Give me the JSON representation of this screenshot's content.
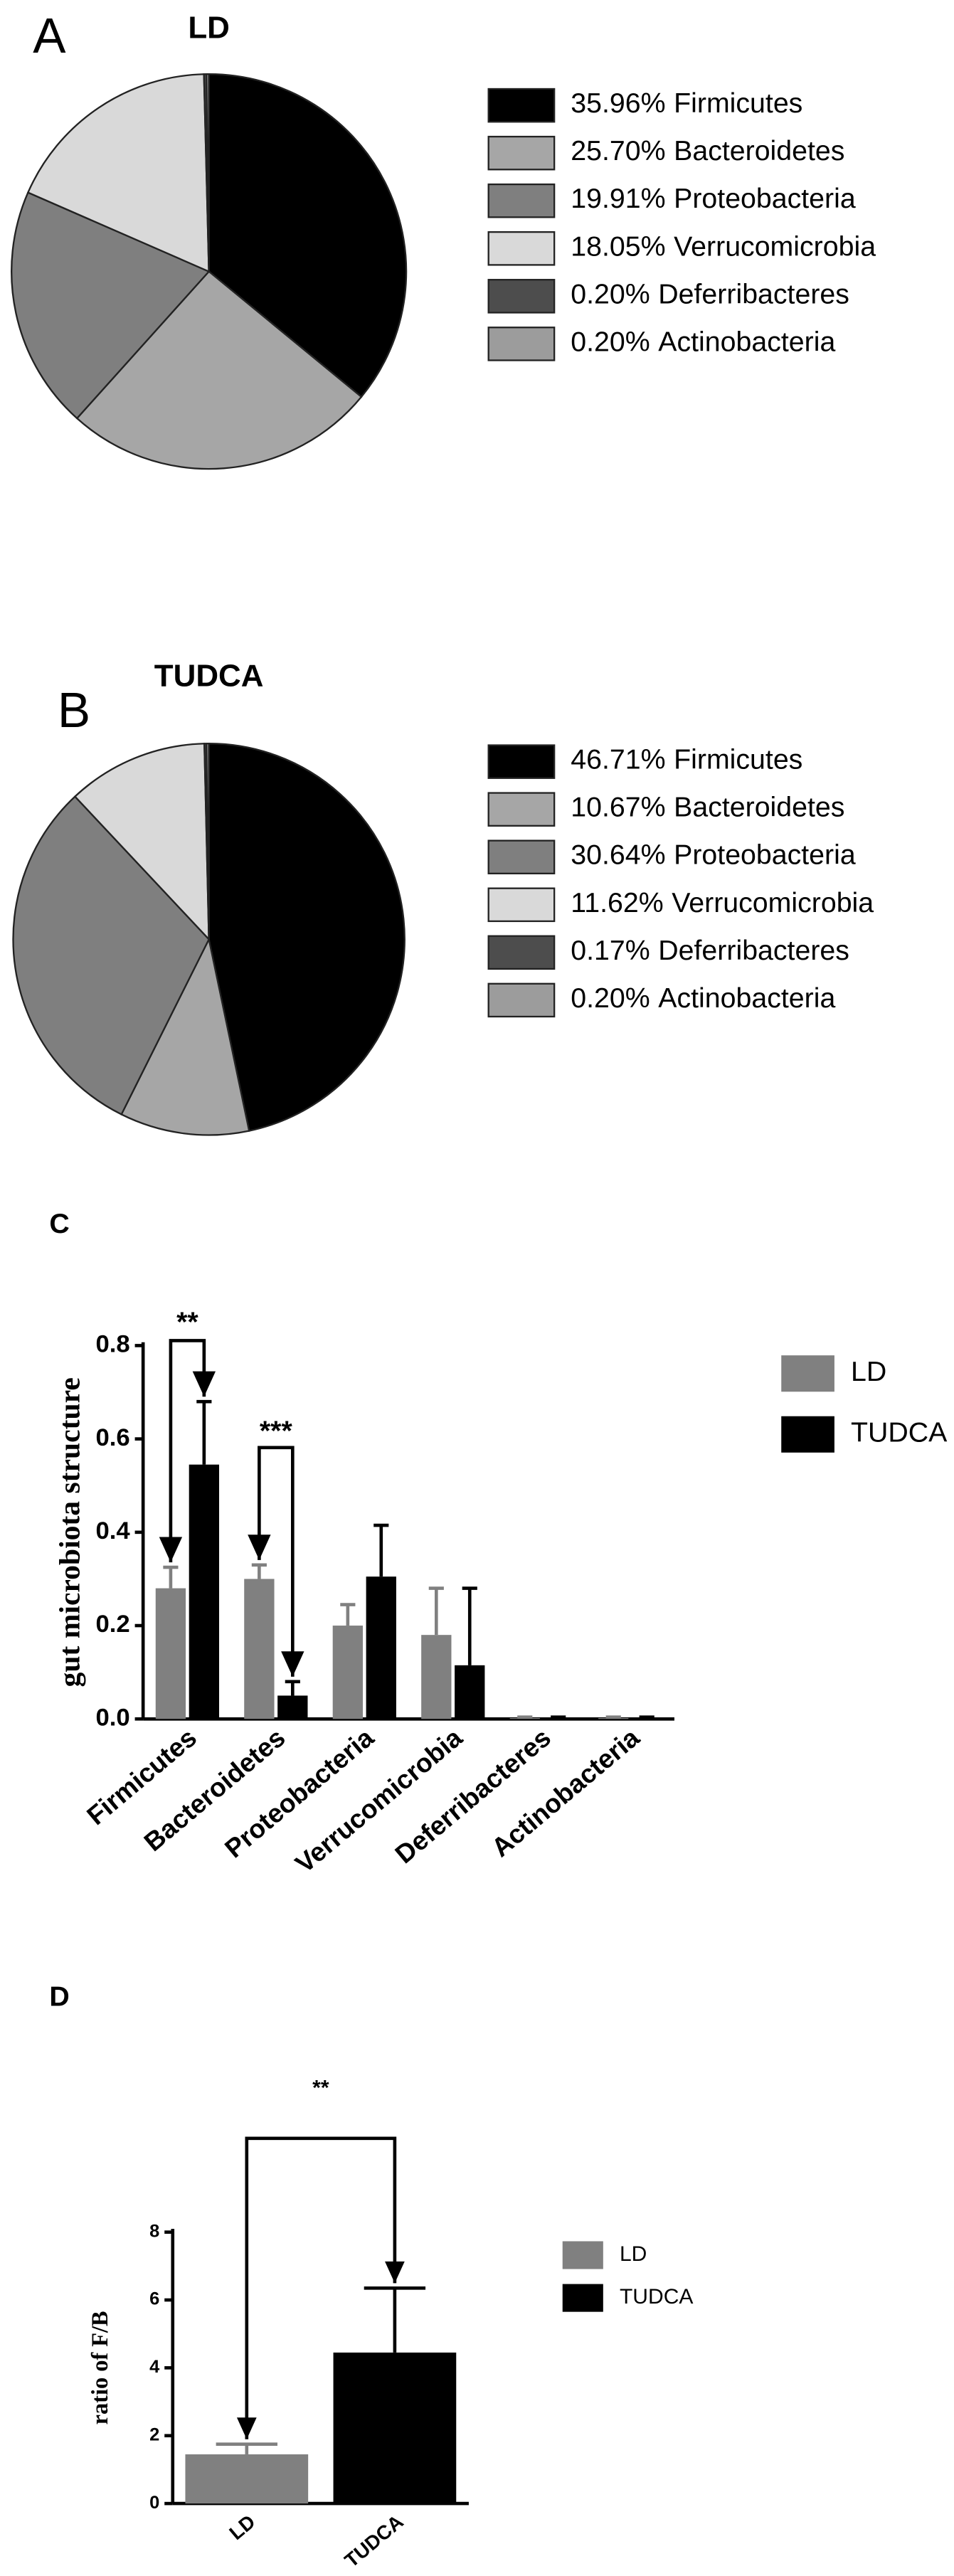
{
  "chart_data": [
    {
      "type": "pie",
      "panel": "A",
      "title": "LD",
      "categories": [
        "Firmicutes",
        "Bacteroidetes",
        "Proteobacteria",
        "Verrucomicrobia",
        "Deferribacteres",
        "Actinobacteria"
      ],
      "values": [
        35.96,
        25.7,
        19.91,
        18.05,
        0.2,
        0.2
      ],
      "value_labels": [
        "35.96%",
        "25.70%",
        "19.91%",
        "18.05%",
        "0.20%",
        "0.20%"
      ],
      "colors": [
        "#000000",
        "#a6a6a6",
        "#7f7f7f",
        "#d9d9d9",
        "#4d4d4d",
        "#9c9c9c"
      ]
    },
    {
      "type": "pie",
      "panel": "B",
      "title": "TUDCA",
      "categories": [
        "Firmicutes",
        "Bacteroidetes",
        "Proteobacteria",
        "Verrucomicrobia",
        "Deferribacteres",
        "Actinobacteria"
      ],
      "values": [
        46.71,
        10.67,
        30.64,
        11.62,
        0.17,
        0.2
      ],
      "value_labels": [
        "46.71%",
        "10.67%",
        "30.64%",
        "11.62%",
        "0.17%",
        "0.20%"
      ],
      "colors": [
        "#000000",
        "#a6a6a6",
        "#7f7f7f",
        "#d9d9d9",
        "#4d4d4d",
        "#9c9c9c"
      ]
    },
    {
      "type": "bar",
      "panel": "C",
      "ylabel": "gut microbiota structure",
      "categories": [
        "Firmicutes",
        "Bacteroidetes",
        "Proteobacteria",
        "Verrucomicrobia",
        "Deferribacteres",
        "Actinobacteria"
      ],
      "series": [
        {
          "name": "LD",
          "color": "#808080",
          "values": [
            0.28,
            0.3,
            0.2,
            0.18,
            0.002,
            0.002
          ],
          "errors": [
            0.045,
            0.03,
            0.045,
            0.1,
            0.002,
            0.002
          ]
        },
        {
          "name": "TUDCA",
          "color": "#000000",
          "values": [
            0.545,
            0.05,
            0.305,
            0.115,
            0.002,
            0.002
          ],
          "errors": [
            0.135,
            0.03,
            0.11,
            0.165,
            0.002,
            0.002
          ]
        }
      ],
      "ylim": [
        0,
        0.8
      ],
      "yticks": [
        {
          "value": 0,
          "label": "0.0"
        },
        0.2,
        0.4,
        0.6,
        0.8
      ],
      "annotations": [
        "**",
        "***"
      ]
    },
    {
      "type": "bar",
      "panel": "D",
      "ylabel": "ratio of F/B",
      "categories": [
        "LD",
        "TUDCA"
      ],
      "values": [
        1.45,
        4.45
      ],
      "errors": [
        0.3,
        1.9
      ],
      "colors": [
        "#808080",
        "#000000"
      ],
      "ylim": [
        0,
        8
      ],
      "yticks": [
        0,
        2,
        4,
        6,
        8
      ],
      "legend": true,
      "annotations": [
        "**"
      ]
    }
  ]
}
